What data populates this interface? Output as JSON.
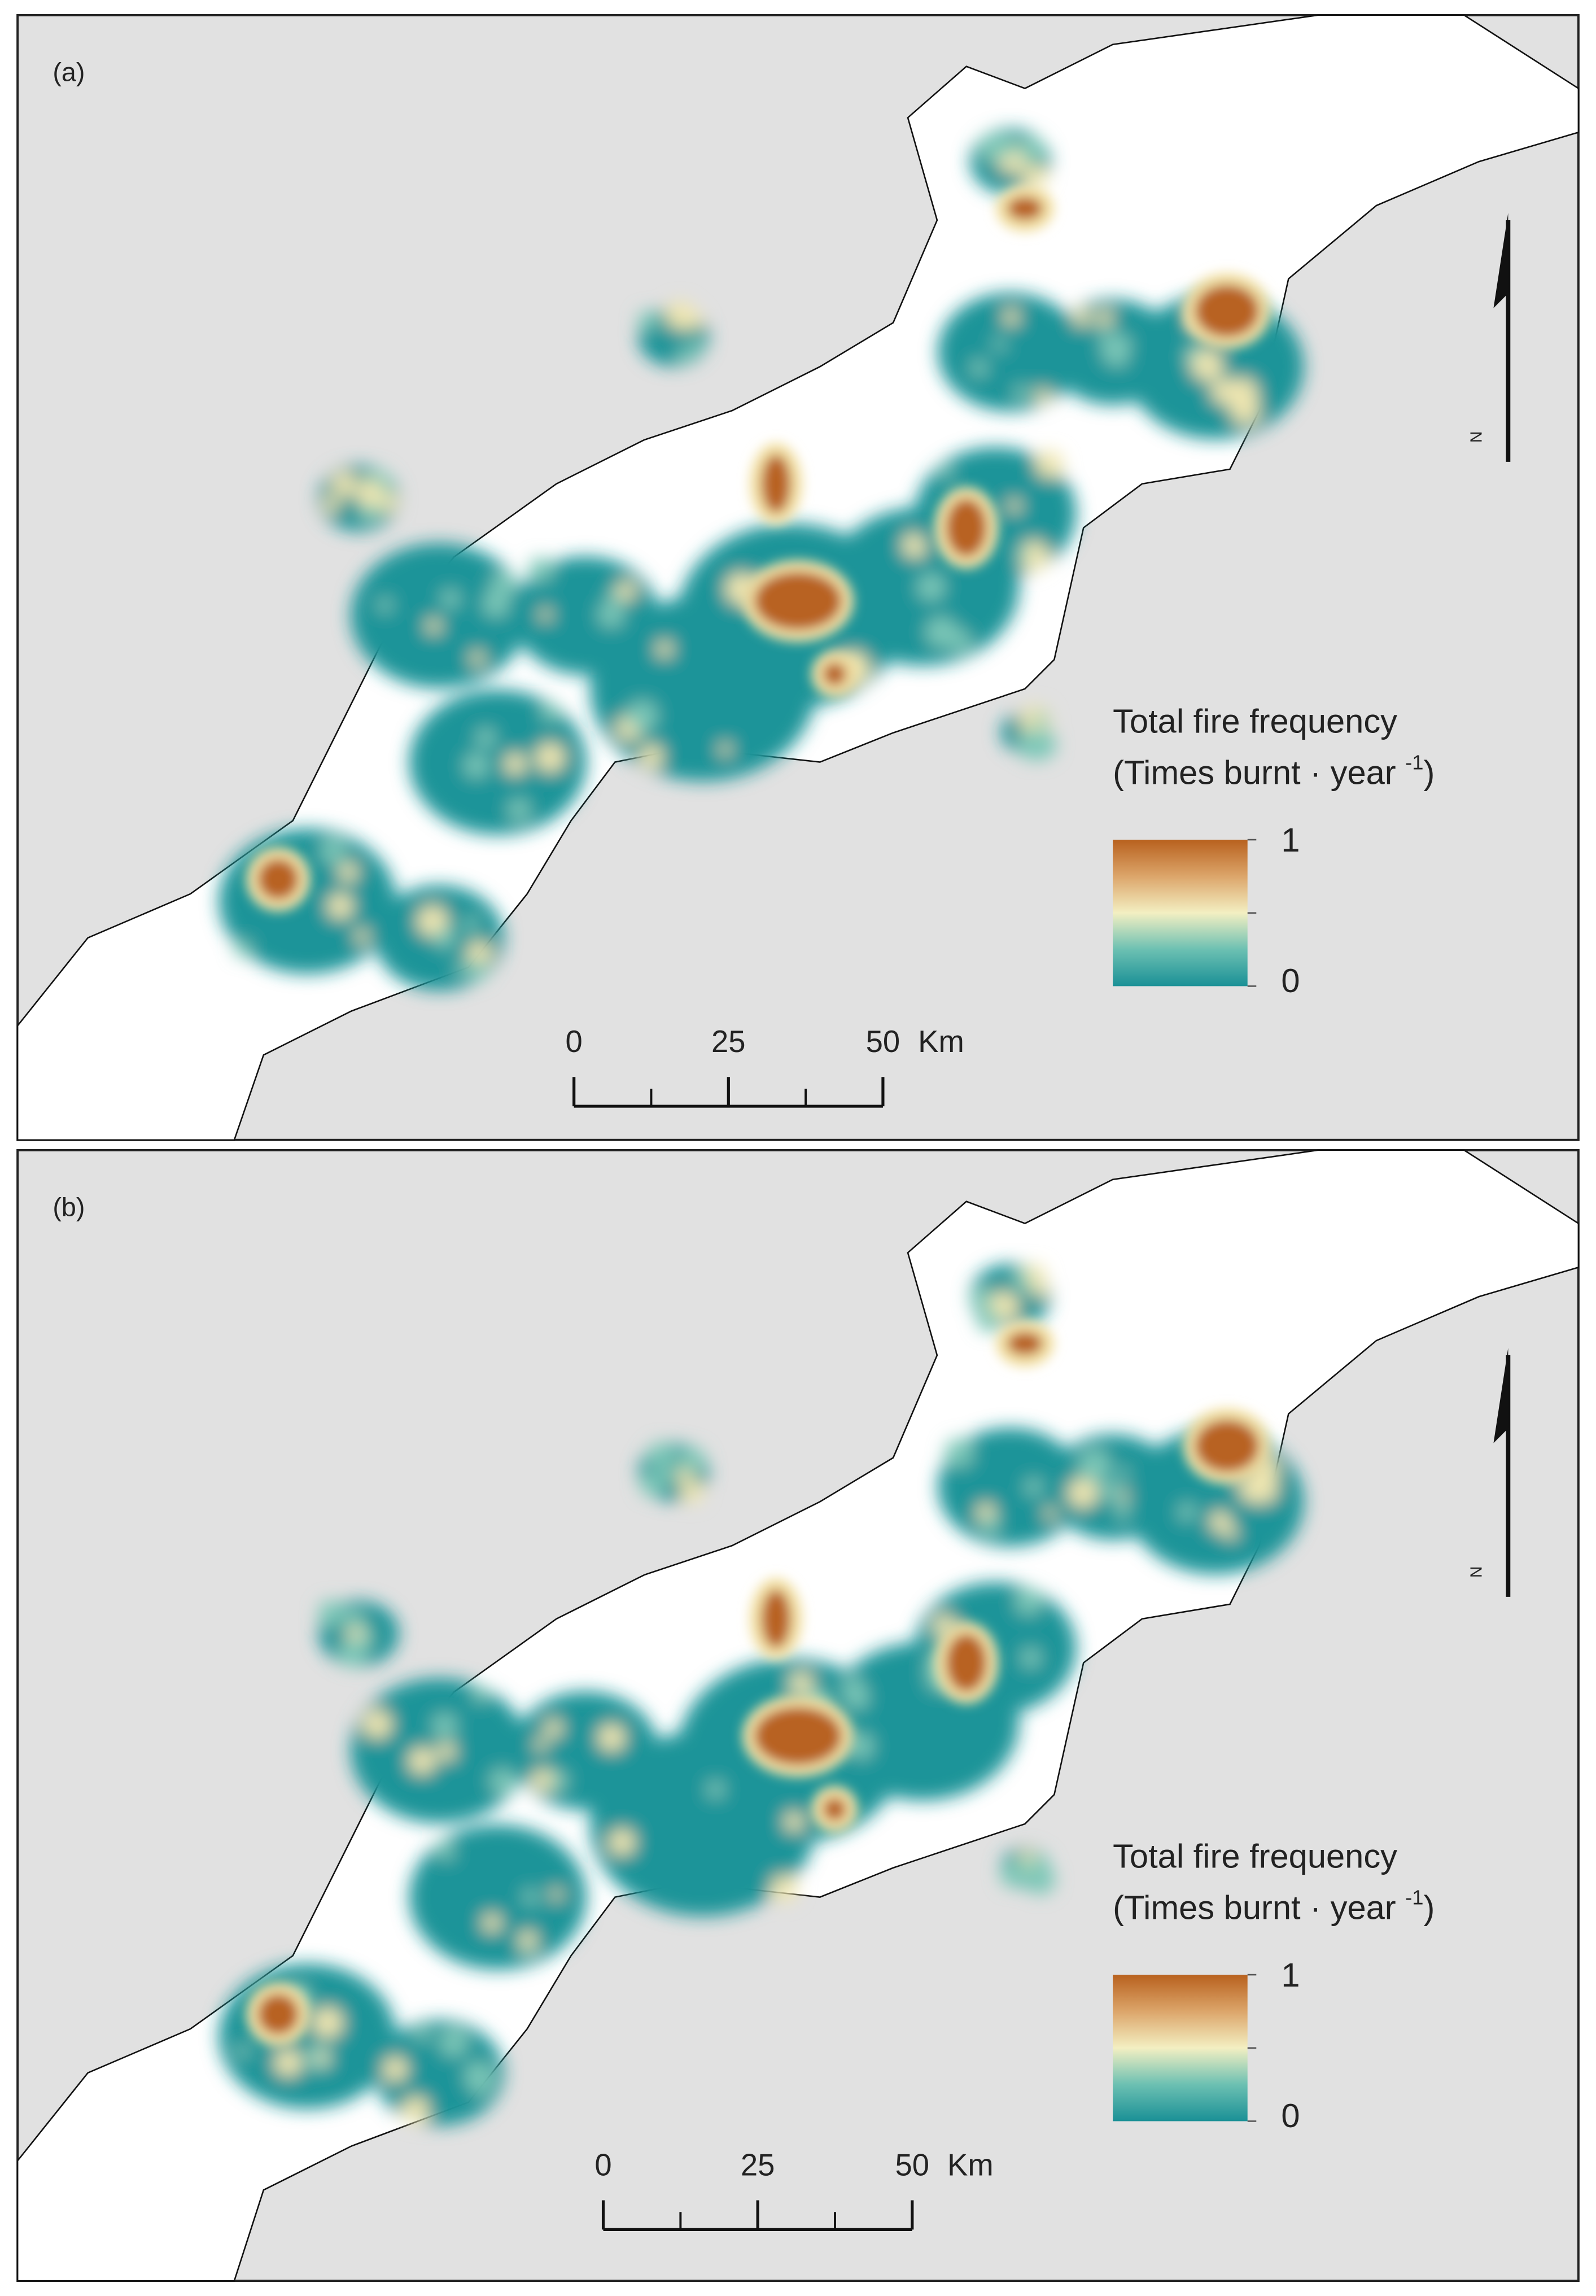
{
  "panels": [
    {
      "label": "(a)",
      "north": "N",
      "legend": {
        "title": "Total fire frequency",
        "subtitle_parts": [
          "(Times burnt · year ",
          "-1",
          ")"
        ],
        "max": 1,
        "min": 0
      },
      "scale_bar": {
        "ticks": [
          0,
          25,
          50
        ],
        "unit": "Km"
      }
    },
    {
      "label": "(b)",
      "north": "N",
      "legend": {
        "title": "Total fire frequency",
        "subtitle_parts": [
          "(Times burnt · year ",
          "-1",
          ")"
        ],
        "max": 1,
        "min": 0
      },
      "scale_bar": {
        "ticks": [
          0,
          25,
          50
        ],
        "unit": "Km"
      }
    }
  ]
}
